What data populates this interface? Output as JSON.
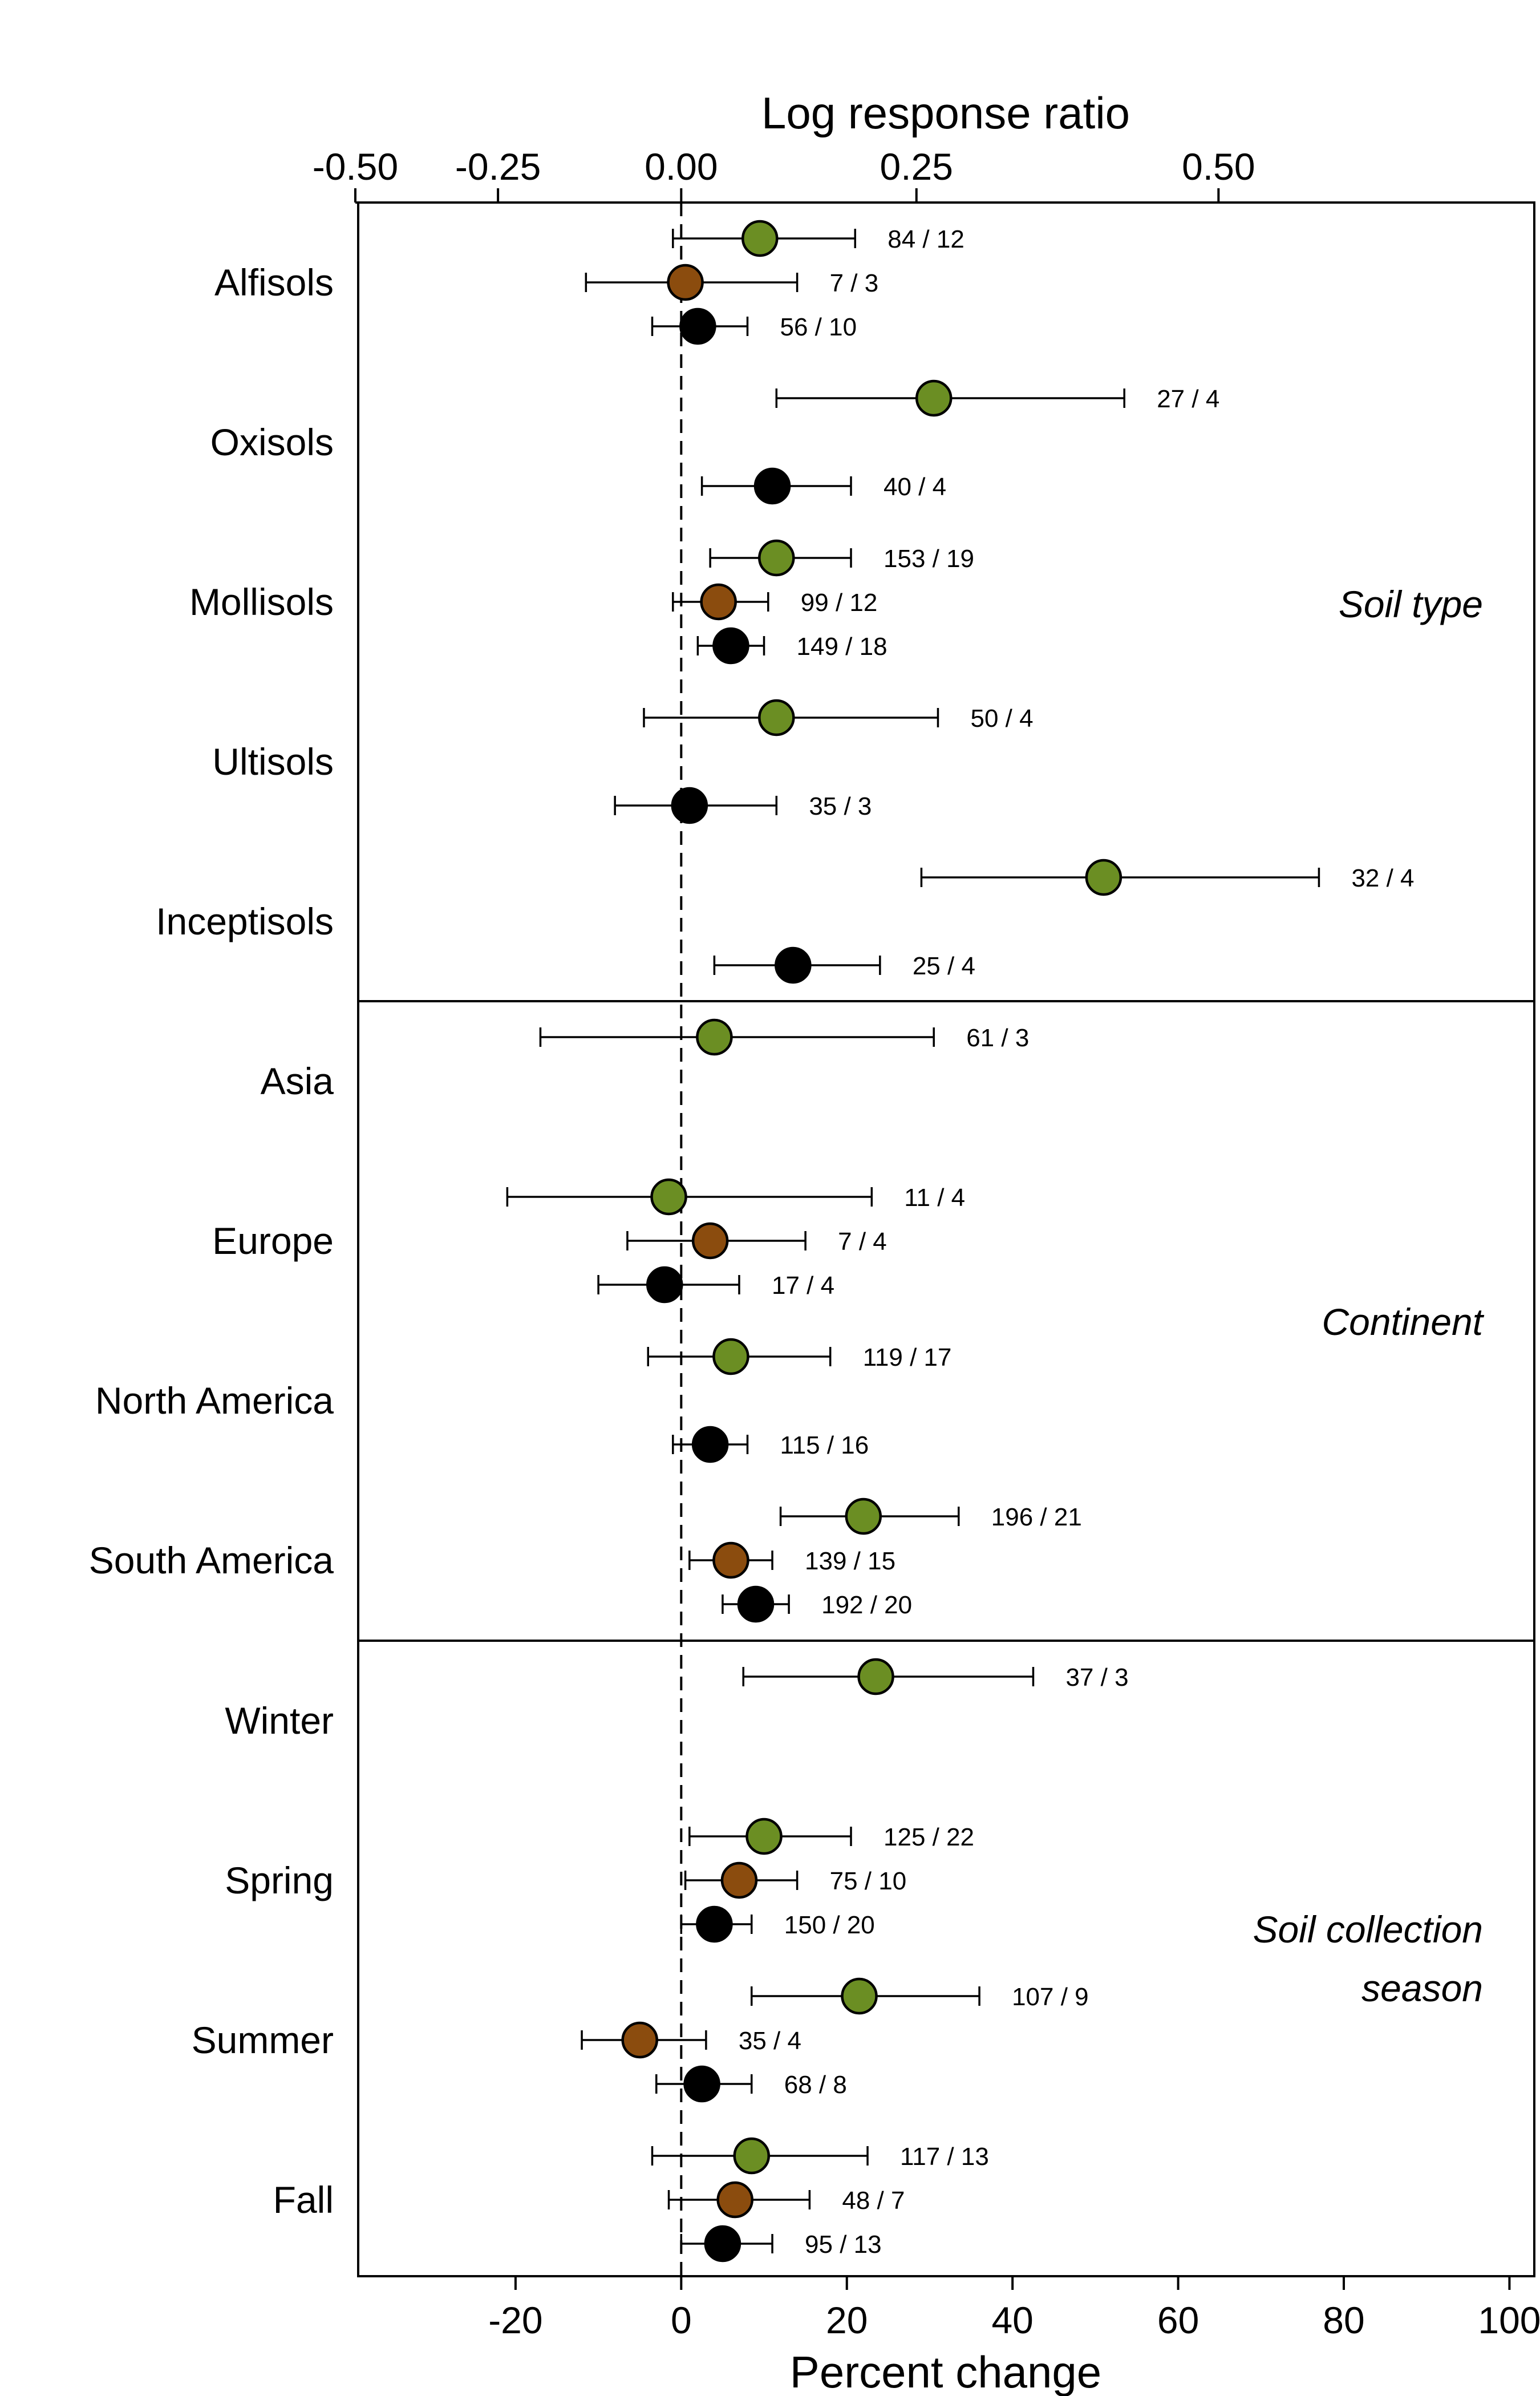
{
  "chart_data": {
    "type": "scatter",
    "top_axis": {
      "label": "Log response ratio",
      "ticks": [
        -0.5,
        -0.25,
        0.0,
        0.25,
        0.5
      ],
      "tick_labels": [
        "-0.50",
        "-0.25",
        "0.00",
        "0.25",
        "0.50"
      ]
    },
    "bottom_axis": {
      "label": "Percent change",
      "ticks": [
        -20,
        0,
        20,
        40,
        60,
        80,
        100
      ],
      "tick_labels": [
        "-20",
        "0",
        "20",
        "40",
        "60",
        "80",
        "100"
      ],
      "xlim": [
        -39,
        103
      ]
    },
    "reference_line": 0,
    "series_colors": [
      "#6b8e23",
      "#8b4c0e",
      "#000000"
    ],
    "panels": [
      {
        "label": "Soil type",
        "groups": [
          {
            "name": "Alfisols",
            "entries": [
              {
                "series": 0,
                "value": 9.5,
                "lo": -1,
                "hi": 21,
                "label": "84 / 12"
              },
              {
                "series": 1,
                "value": 0.5,
                "lo": -11.5,
                "hi": 14,
                "label": "7 / 3"
              },
              {
                "series": 2,
                "value": 2,
                "lo": -3.5,
                "hi": 8,
                "label": "56 / 10"
              }
            ]
          },
          {
            "name": "Oxisols",
            "entries": [
              {
                "series": 0,
                "value": 30.5,
                "lo": 11.5,
                "hi": 53.5,
                "label": "27 / 4"
              },
              {
                "series": 2,
                "value": 11,
                "lo": 2.5,
                "hi": 20.5,
                "label": "40 / 4"
              }
            ]
          },
          {
            "name": "Mollisols",
            "entries": [
              {
                "series": 0,
                "value": 11.5,
                "lo": 3.5,
                "hi": 20.5,
                "label": "153 / 19"
              },
              {
                "series": 1,
                "value": 4.5,
                "lo": -1,
                "hi": 10.5,
                "label": "99 / 12"
              },
              {
                "series": 2,
                "value": 6,
                "lo": 2,
                "hi": 10,
                "label": "149 / 18"
              }
            ]
          },
          {
            "name": "Ultisols",
            "entries": [
              {
                "series": 0,
                "value": 11.5,
                "lo": -4.5,
                "hi": 31,
                "label": "50 / 4"
              },
              {
                "series": 2,
                "value": 1,
                "lo": -8,
                "hi": 11.5,
                "label": "35 / 3"
              }
            ]
          },
          {
            "name": "Inceptisols",
            "entries": [
              {
                "series": 0,
                "value": 51,
                "lo": 29,
                "hi": 77,
                "label": "32 / 4"
              },
              {
                "series": 2,
                "value": 13.5,
                "lo": 4,
                "hi": 24,
                "label": "25 / 4"
              }
            ]
          }
        ]
      },
      {
        "label": "Continent",
        "groups": [
          {
            "name": "Asia",
            "entries": [
              {
                "series": 0,
                "value": 4,
                "lo": -17,
                "hi": 30.5,
                "label": "61 / 3"
              }
            ]
          },
          {
            "name": "Europe",
            "entries": [
              {
                "series": 0,
                "value": -1.5,
                "lo": -21,
                "hi": 23,
                "label": "11 / 4"
              },
              {
                "series": 1,
                "value": 3.5,
                "lo": -6.5,
                "hi": 15,
                "label": "7 / 4"
              },
              {
                "series": 2,
                "value": -2,
                "lo": -10,
                "hi": 7,
                "label": "17 / 4"
              }
            ]
          },
          {
            "name": "North America",
            "entries": [
              {
                "series": 0,
                "value": 6,
                "lo": -4,
                "hi": 18,
                "label": "119 / 17"
              },
              {
                "series": 2,
                "value": 3.5,
                "lo": -1,
                "hi": 8,
                "label": "115 / 16"
              }
            ]
          },
          {
            "name": "South America",
            "entries": [
              {
                "series": 0,
                "value": 22,
                "lo": 12,
                "hi": 33.5,
                "label": "196 / 21"
              },
              {
                "series": 1,
                "value": 6,
                "lo": 1,
                "hi": 11,
                "label": "139 / 15"
              },
              {
                "series": 2,
                "value": 9,
                "lo": 5,
                "hi": 13,
                "label": "192 / 20"
              }
            ]
          }
        ]
      },
      {
        "label": "Soil collection season",
        "groups": [
          {
            "name": "Winter",
            "entries": [
              {
                "series": 0,
                "value": 23.5,
                "lo": 7.5,
                "hi": 42.5,
                "label": "37 / 3"
              }
            ]
          },
          {
            "name": "Spring",
            "entries": [
              {
                "series": 0,
                "value": 10,
                "lo": 1,
                "hi": 20.5,
                "label": "125 / 22"
              },
              {
                "series": 1,
                "value": 7,
                "lo": 0.5,
                "hi": 14,
                "label": "75 / 10"
              },
              {
                "series": 2,
                "value": 4,
                "lo": 0,
                "hi": 8.5,
                "label": "150 / 20"
              }
            ]
          },
          {
            "name": "Summer",
            "entries": [
              {
                "series": 0,
                "value": 21.5,
                "lo": 8.5,
                "hi": 36,
                "label": "107 / 9"
              },
              {
                "series": 1,
                "value": -5,
                "lo": -12,
                "hi": 3,
                "label": "35 / 4"
              },
              {
                "series": 2,
                "value": 2.5,
                "lo": -3,
                "hi": 8.5,
                "label": "68 / 8"
              }
            ]
          },
          {
            "name": "Fall",
            "entries": [
              {
                "series": 0,
                "value": 8.5,
                "lo": -3.5,
                "hi": 22.5,
                "label": "117 / 13"
              },
              {
                "series": 1,
                "value": 6.5,
                "lo": -1.5,
                "hi": 15.5,
                "label": "48 / 7"
              },
              {
                "series": 2,
                "value": 5,
                "lo": 0,
                "hi": 11,
                "label": "95 / 13"
              }
            ]
          }
        ]
      }
    ]
  }
}
